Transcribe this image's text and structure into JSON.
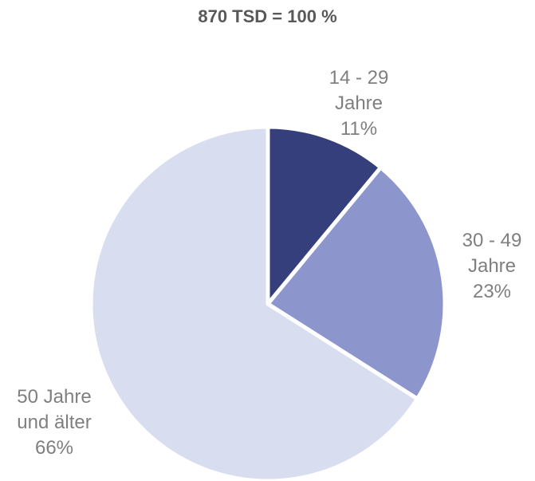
{
  "chart_data": {
    "type": "pie",
    "title": "870 TSD = 100 %",
    "categories": [
      "14 - 29 Jahre",
      "30 - 49 Jahre",
      "50 Jahre und älter"
    ],
    "values": [
      11,
      23,
      66
    ],
    "value_labels": [
      "11%",
      "23%",
      "66%"
    ],
    "colors": [
      "#353f7c",
      "#8c96cc",
      "#d9ddf0"
    ]
  }
}
